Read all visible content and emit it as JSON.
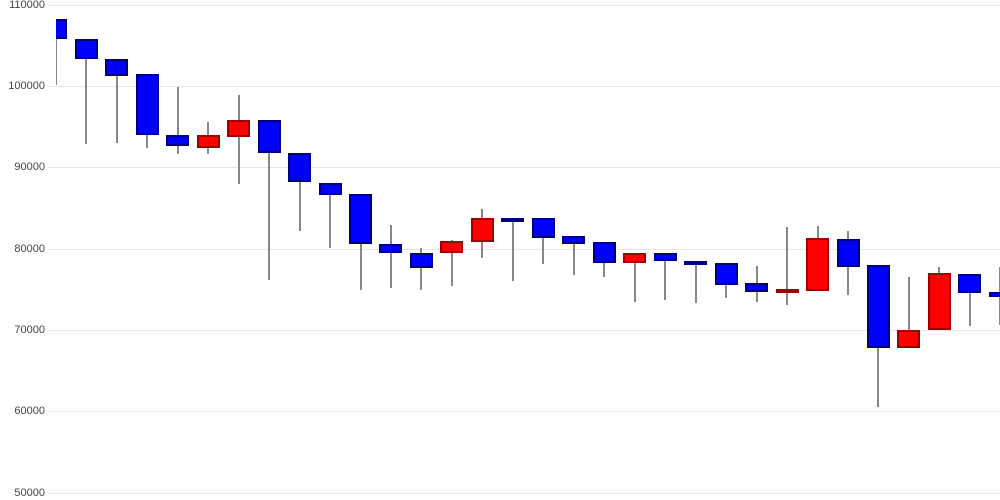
{
  "chart_data": {
    "type": "candlestick",
    "title": "",
    "subtitle": "",
    "legend": "none",
    "background_color": "#ffffff",
    "grid": true,
    "y_axis": {
      "min": 50000,
      "max": 110000,
      "tick_interval": 10000,
      "ticks": [
        110000,
        100000,
        90000,
        80000,
        70000,
        60000,
        50000
      ],
      "tick_labels": [
        "110000",
        "100000",
        "90000",
        "80000",
        "70000",
        "60000",
        "50000"
      ]
    },
    "x_axis": {
      "labels_visible": false,
      "num_candles": 32
    },
    "style": {
      "up_color": "#ff0000",
      "up_border_color": "#a00000",
      "down_color": "#0000ff",
      "down_border_color": "#000080",
      "wick_color": "#888888",
      "gridline_color": "#e6e6e6",
      "label_color": "#444444"
    },
    "candles": [
      {
        "open": 108300,
        "high": 108300,
        "low": 100200,
        "close": 105900
      },
      {
        "open": 105900,
        "high": 105900,
        "low": 93000,
        "close": 103400
      },
      {
        "open": 103400,
        "high": 103400,
        "low": 93100,
        "close": 101300
      },
      {
        "open": 101500,
        "high": 101500,
        "low": 92500,
        "close": 94000
      },
      {
        "open": 94100,
        "high": 100000,
        "low": 91700,
        "close": 92700
      },
      {
        "open": 92400,
        "high": 95600,
        "low": 91700,
        "close": 94000
      },
      {
        "open": 93800,
        "high": 99000,
        "low": 88000,
        "close": 95900
      },
      {
        "open": 95900,
        "high": 95900,
        "low": 76200,
        "close": 91900
      },
      {
        "open": 91800,
        "high": 91800,
        "low": 82200,
        "close": 88300
      },
      {
        "open": 88200,
        "high": 88200,
        "low": 80100,
        "close": 86700
      },
      {
        "open": 86800,
        "high": 86800,
        "low": 75000,
        "close": 80600
      },
      {
        "open": 80600,
        "high": 83000,
        "low": 75300,
        "close": 79600
      },
      {
        "open": 79600,
        "high": 80100,
        "low": 75000,
        "close": 77700
      },
      {
        "open": 79600,
        "high": 81100,
        "low": 75500,
        "close": 81000
      },
      {
        "open": 80900,
        "high": 84900,
        "low": 78900,
        "close": 83800
      },
      {
        "open": 83900,
        "high": 83900,
        "low": 76100,
        "close": 83800
      },
      {
        "open": 83800,
        "high": 83800,
        "low": 78200,
        "close": 81400
      },
      {
        "open": 81600,
        "high": 81600,
        "low": 76800,
        "close": 80700
      },
      {
        "open": 80900,
        "high": 80900,
        "low": 76600,
        "close": 78300
      },
      {
        "open": 78300,
        "high": 79600,
        "low": 73500,
        "close": 79600
      },
      {
        "open": 79500,
        "high": 79500,
        "low": 73800,
        "close": 78600
      },
      {
        "open": 78600,
        "high": 78600,
        "low": 73400,
        "close": 78200
      },
      {
        "open": 78300,
        "high": 78300,
        "low": 74000,
        "close": 75600
      },
      {
        "open": 75900,
        "high": 78000,
        "low": 73500,
        "close": 74700
      },
      {
        "open": 74600,
        "high": 82800,
        "low": 73200,
        "close": 75100
      },
      {
        "open": 74900,
        "high": 82900,
        "low": 74900,
        "close": 81400
      },
      {
        "open": 81300,
        "high": 82200,
        "low": 74400,
        "close": 77800
      },
      {
        "open": 78100,
        "high": 78100,
        "low": 60600,
        "close": 67900
      },
      {
        "open": 67900,
        "high": 76600,
        "low": 67900,
        "close": 70100
      },
      {
        "open": 70100,
        "high": 77800,
        "low": 70100,
        "close": 77100
      },
      {
        "open": 77000,
        "high": 77000,
        "low": 70600,
        "close": 74600
      },
      {
        "open": 74800,
        "high": 77800,
        "low": 70700,
        "close": 74100
      }
    ]
  }
}
